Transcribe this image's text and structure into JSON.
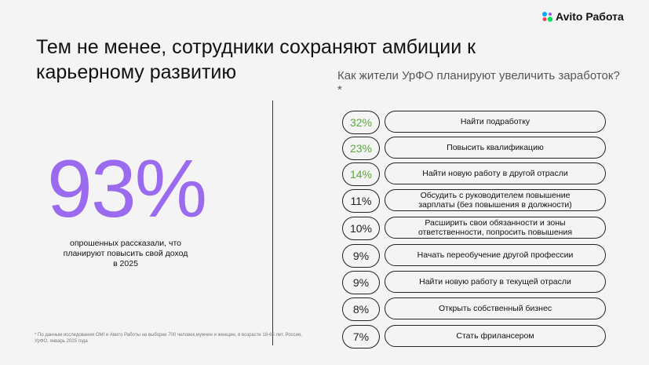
{
  "header": {
    "logo": "Avito Работа",
    "title": "Тем не менее, сотрудники сохраняют амбиции к карьерному развитию"
  },
  "highlight": {
    "value": "93%",
    "caption": "опрошенных рассказали, что планируют повысить свой доход в 2025",
    "color": "#9b6bef"
  },
  "survey": {
    "question": "Как жители УрФО планируют увеличить заработок?*",
    "items": [
      {
        "value": "32%",
        "label": "Найти подработку",
        "color": "#5aa83a"
      },
      {
        "value": "23%",
        "label": "Повысить квалификацию",
        "color": "#5aa83a"
      },
      {
        "value": "14%",
        "label": "Найти новую работу в другой отрасли",
        "color": "#5aa83a"
      },
      {
        "value": "11%",
        "label": "Обсудить с руководителем повышение зарплаты (без повышения в должности)",
        "color": "#222222"
      },
      {
        "value": "10%",
        "label": "Расширить свои обязанности и зоны ответственности, попросить повышения",
        "color": "#222222"
      },
      {
        "value": "9%",
        "label": "Начать переобучение другой профессии",
        "color": "#222222"
      },
      {
        "value": "9%",
        "label": "Найти новую работу в текущей отрасли",
        "color": "#222222"
      },
      {
        "value": "8%",
        "label": "Открыть собственный бизнес",
        "color": "#222222"
      },
      {
        "value": "7%",
        "label": "Стать фрилансером",
        "color": "#222222"
      }
    ]
  },
  "footnote": "* По данным исследования OMI и Авито Работы на выборке 700 человек,мужчин и женщин, в возрасте 18-65 лет. Россия, УрФО, январь 2025 года"
}
